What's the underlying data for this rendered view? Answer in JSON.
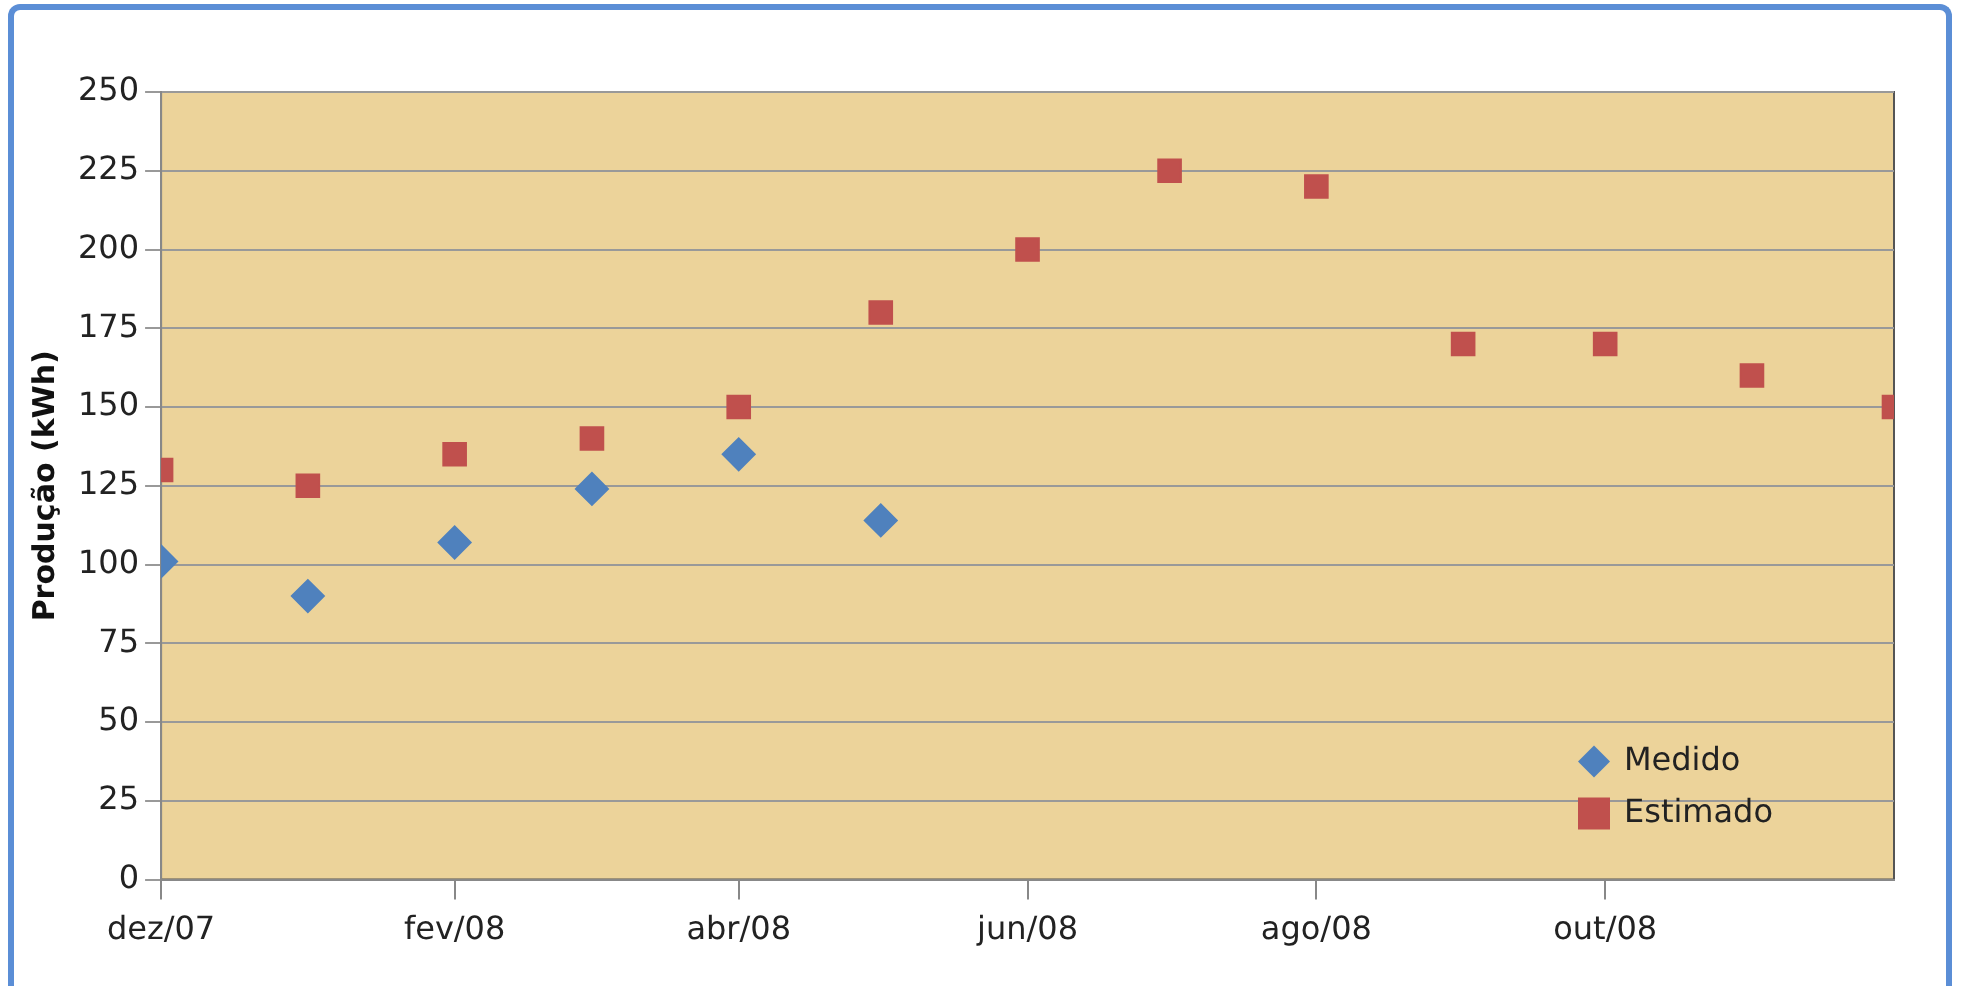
{
  "chart_data": {
    "type": "scatter",
    "ylabel": "Produção (kWh)",
    "x": [
      "2007-12",
      "2008-01",
      "2008-02",
      "2008-03",
      "2008-04",
      "2008-05",
      "2008-06",
      "2008-07",
      "2008-08",
      "2008-09",
      "2008-10",
      "2008-11",
      "2008-12"
    ],
    "series": [
      {
        "name": "Medido",
        "color": "#4f81bd",
        "marker": "diamond",
        "x": [
          "2007-12",
          "2008-01",
          "2008-02",
          "2008-03",
          "2008-04",
          "2008-05"
        ],
        "values": [
          101,
          90,
          107,
          124,
          135,
          114
        ]
      },
      {
        "name": "Estimado",
        "color": "#c0504d",
        "marker": "square",
        "values": [
          130,
          125,
          135,
          140,
          150,
          180,
          200,
          225,
          220,
          170,
          170,
          160,
          150
        ]
      }
    ],
    "xlim": [
      "2007-12",
      "2008-12"
    ],
    "xticks": [
      {
        "value": "2007-12",
        "label": "dez/07"
      },
      {
        "value": "2008-02",
        "label": "fev/08"
      },
      {
        "value": "2008-04",
        "label": "abr/08"
      },
      {
        "value": "2008-06",
        "label": "jun/08"
      },
      {
        "value": "2008-08",
        "label": "ago/08"
      },
      {
        "value": "2008-10",
        "label": "out/08"
      }
    ],
    "ylim": [
      0,
      250
    ],
    "yticks": [
      0,
      25,
      50,
      75,
      100,
      125,
      150,
      175,
      200,
      225,
      250
    ],
    "grid": "y",
    "legend": "bottom right"
  }
}
